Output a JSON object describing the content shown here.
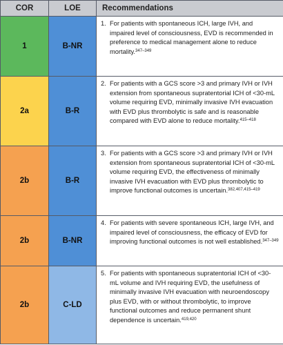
{
  "headers": {
    "cor": "COR",
    "loe": "LOE",
    "recommendations": "Recommendations"
  },
  "rows": [
    {
      "cor": "1",
      "loe": "B-NR",
      "num": "1.",
      "text": "For patients with spontaneous ICH, large IVH, and impaired level of consciousness, EVD is recommended in preference to medical management alone to reduce mortality.",
      "refs": "347–349",
      "cor_color": "#5cb85c",
      "loe_color": "#4f8fd6"
    },
    {
      "cor": "2a",
      "loe": "B-R",
      "num": "2.",
      "text": "For patients with a GCS score >3 and primary IVH or IVH extension from spontaneous supratentorial ICH of <30-mL volume requiring EVD, minimally invasive IVH evacuation with EVD plus thrombolytic is safe and is reasonable compared with EVD alone to reduce mortality.",
      "refs": "415–418",
      "cor_color": "#fcd34d",
      "loe_color": "#4f8fd6"
    },
    {
      "cor": "2b",
      "loe": "B-R",
      "num": "3.",
      "text": "For patients with a GCS score >3 and primary IVH or IVH extension from spontaneous supratentorial ICH of <30-mL volume requiring EVD, the effectiveness of minimally invasive IVH evacuation with EVD plus thrombolytic to improve functional outcomes is uncertain.",
      "refs": "382,407,415–419",
      "cor_color": "#f5a150",
      "loe_color": "#4f8fd6"
    },
    {
      "cor": "2b",
      "loe": "B-NR",
      "num": "4.",
      "text": "For patients with severe spontaneous ICH, large IVH, and impaired level of consciousness, the efficacy of EVD for improving functional outcomes is not well established.",
      "refs": "347–349",
      "cor_color": "#f5a150",
      "loe_color": "#4f8fd6"
    },
    {
      "cor": "2b",
      "loe": "C-LD",
      "num": "5.",
      "text": "For patients with spontaneous supratentorial ICH of <30-mL volume and IVH requiring EVD, the usefulness of minimally invasive IVH evacuation with neuroendoscopy plus EVD, with or without thrombolytic, to improve functional outcomes and reduce permanent shunt dependence is uncertain.",
      "refs": "419,420",
      "cor_color": "#f5a150",
      "loe_color": "#8fb8e6"
    }
  ]
}
